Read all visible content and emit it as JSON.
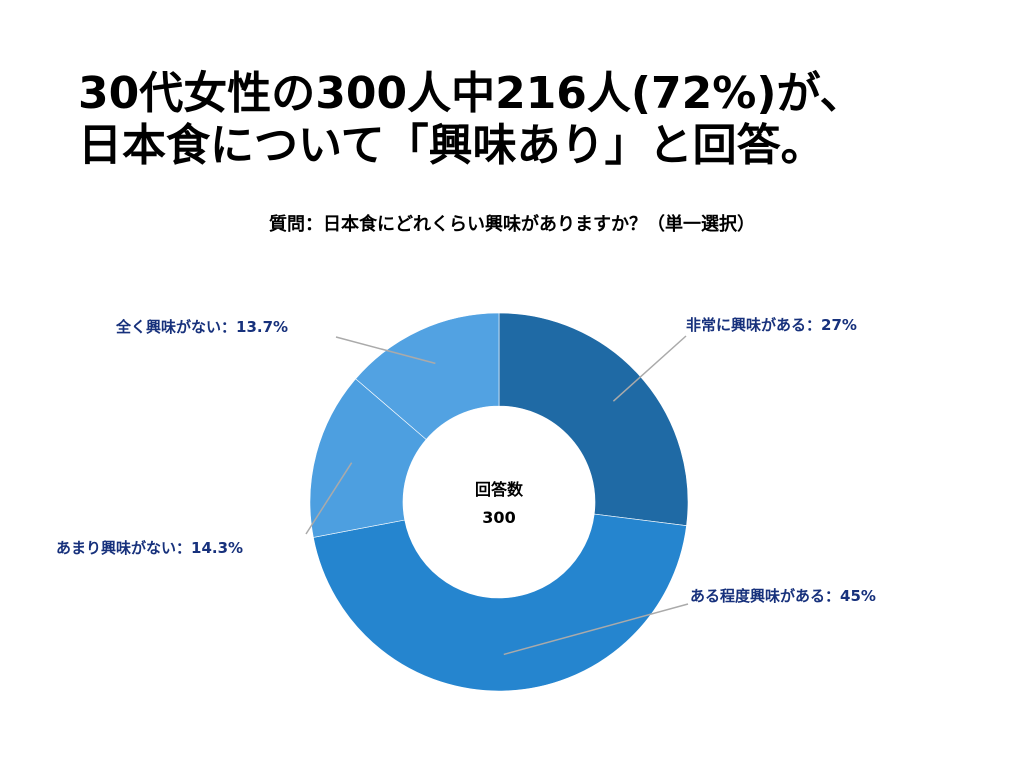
{
  "headline": {
    "line1": "30代女性の300人中216人(72%)が、",
    "line2": "日本食について「興味あり」と回答。"
  },
  "question": "質問：日本食にどれくらい興味がありますか？（単一選択）",
  "chart_data": {
    "type": "pie",
    "donut": true,
    "center_label": "回答数",
    "center_value": "300",
    "slices": [
      {
        "label": "非常に興味がある：27%",
        "value": 27,
        "color": "#1f6aa5"
      },
      {
        "label": "ある程度興味がある：45%",
        "value": 45,
        "color": "#2585cf"
      },
      {
        "label": "あまり興味がない：14.3%",
        "value": 14.3,
        "color": "#4d9fe0"
      },
      {
        "label": "全く興味がない：13.7%",
        "value": 13.7,
        "color": "#52a2e2"
      }
    ],
    "label_color": "#17317c",
    "leader_color": "#aaaaaa"
  }
}
